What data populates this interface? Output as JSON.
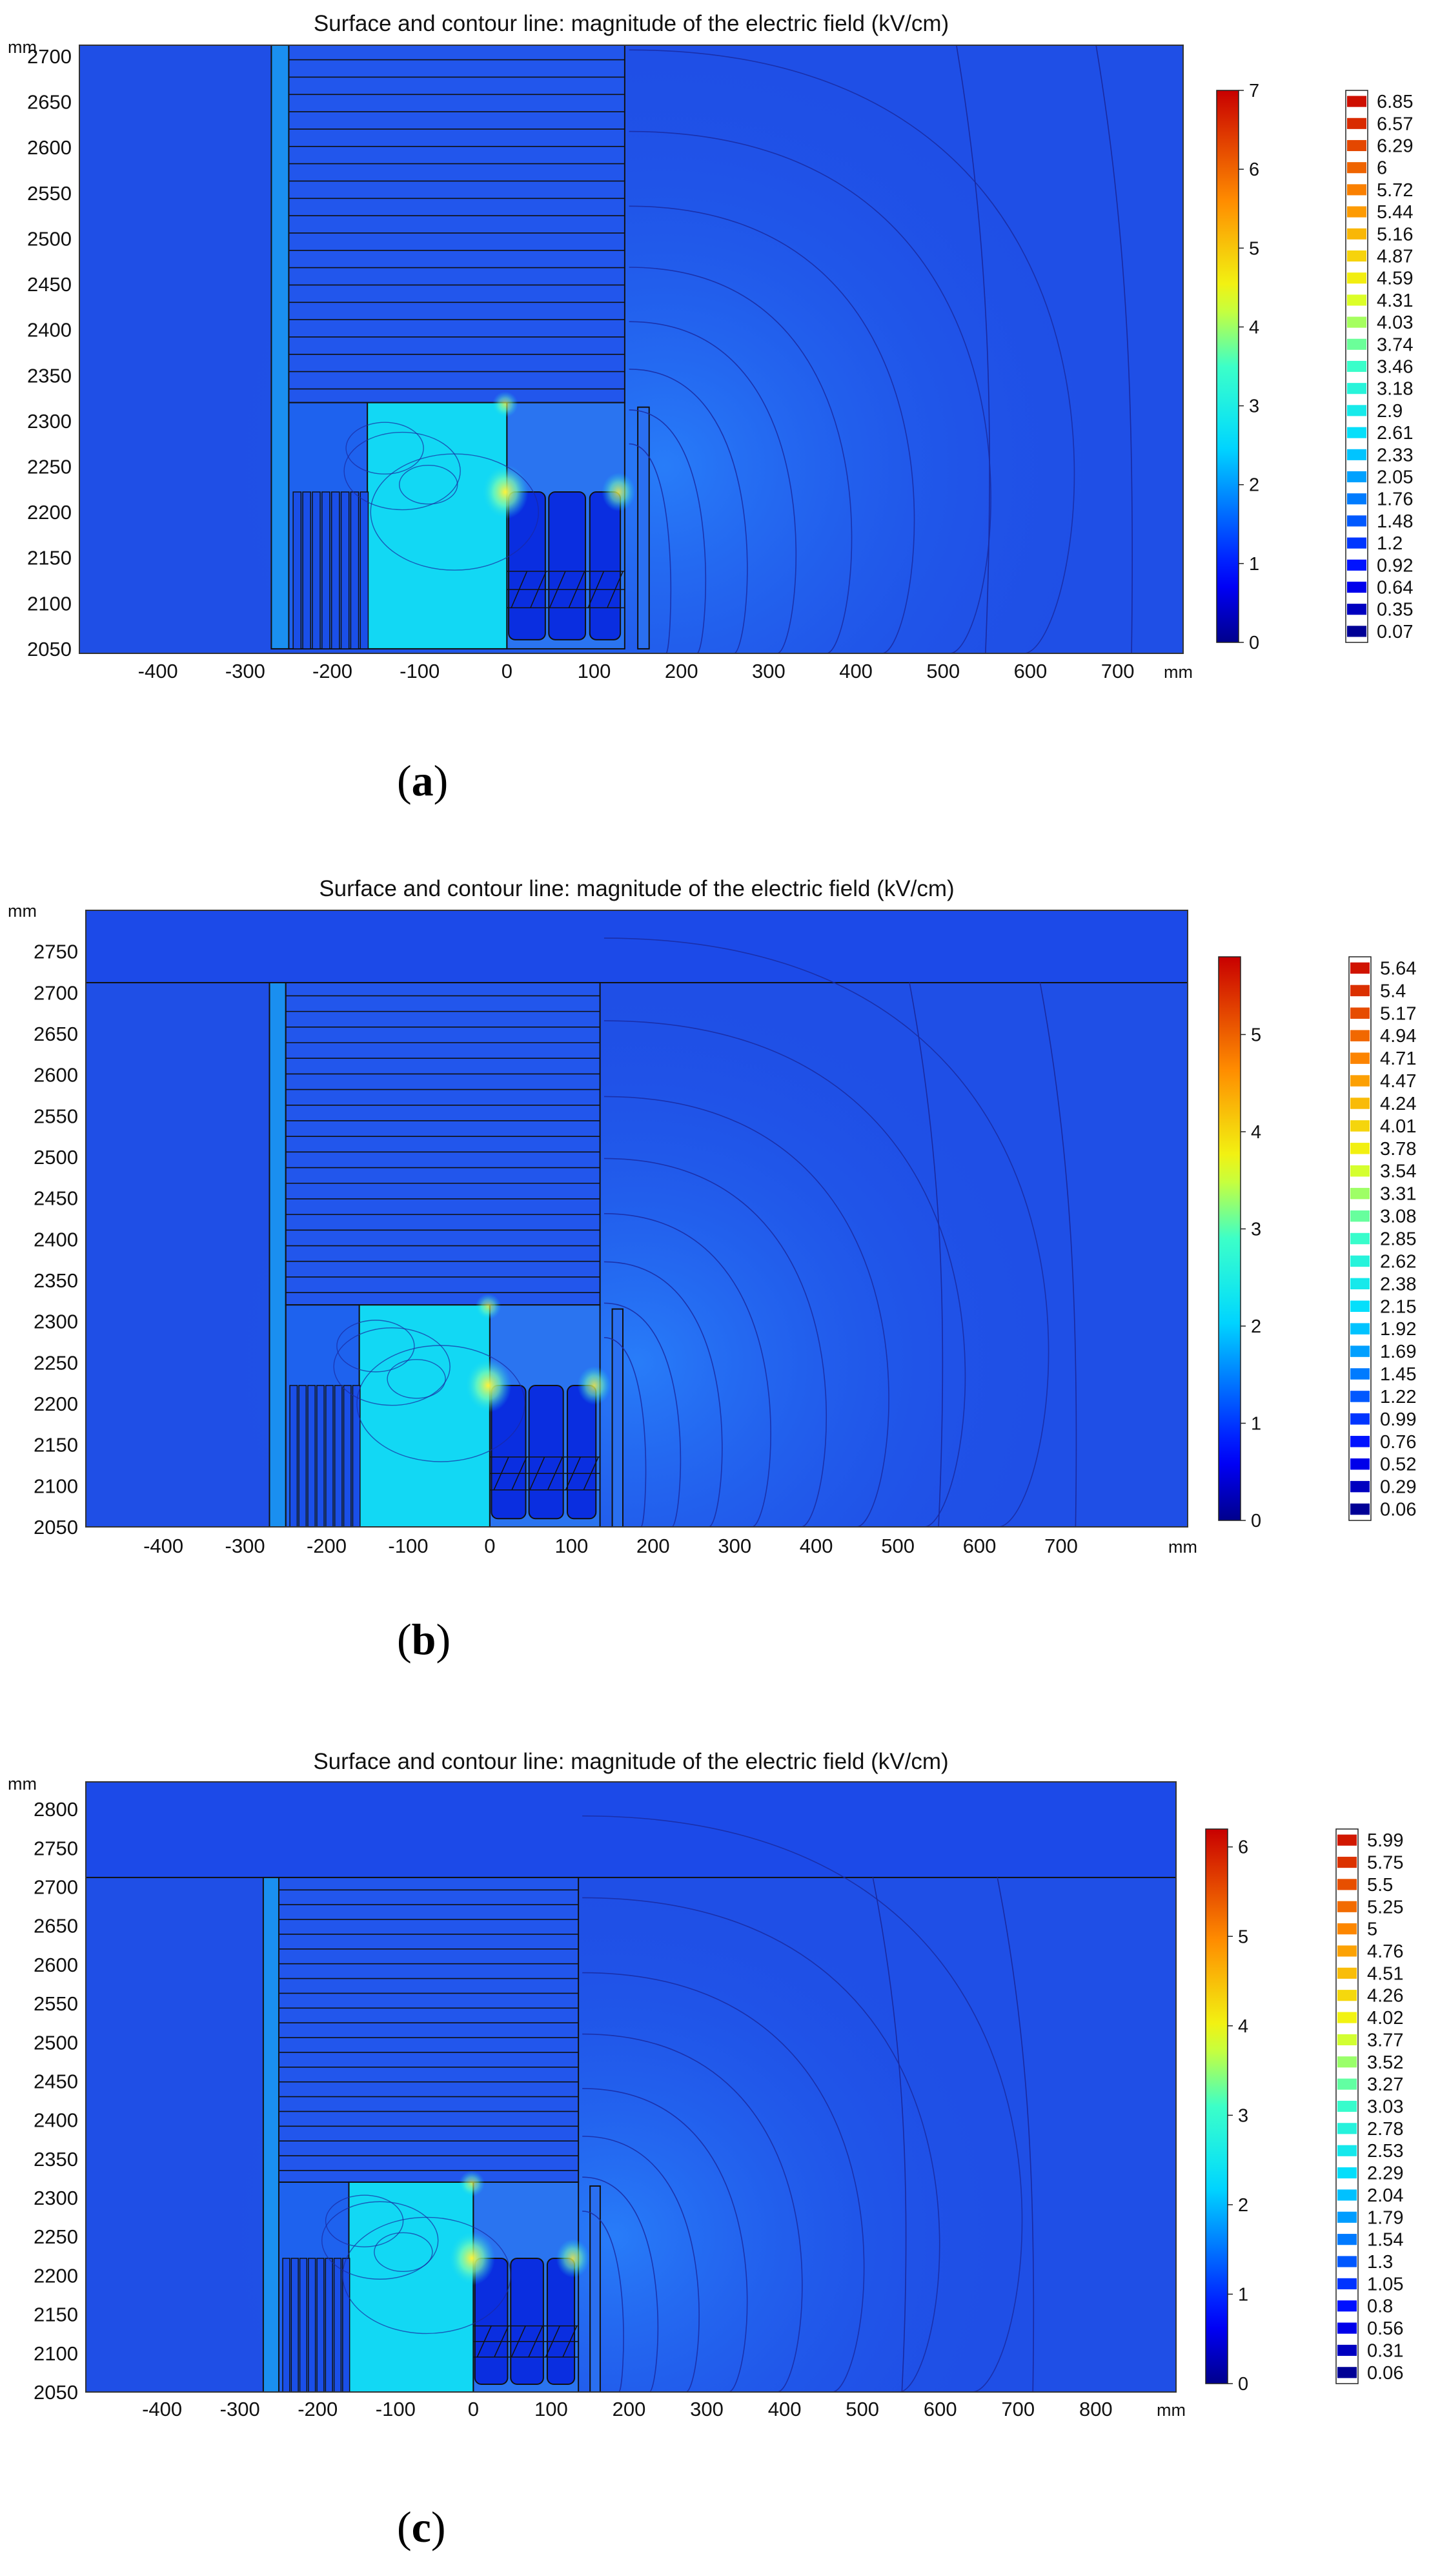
{
  "chart_data": [
    {
      "type": "heatmap",
      "panel_label": "a",
      "title": "Surface and contour line: magnitude of the electric field (kV/cm)",
      "x_unit": "mm",
      "y_unit": "mm",
      "x_ticks": [
        -400,
        -300,
        -200,
        -100,
        0,
        100,
        200,
        300,
        400,
        500,
        600,
        700
      ],
      "y_ticks": [
        2050,
        2100,
        2150,
        2200,
        2250,
        2300,
        2350,
        2400,
        2450,
        2500,
        2550,
        2600,
        2650,
        2700
      ],
      "xlim": [
        -490,
        775
      ],
      "ylim": [
        2045,
        2712
      ],
      "colorbar_ticks": [
        0,
        1,
        2,
        3,
        4,
        5,
        6,
        7
      ],
      "colorbar_max": 7,
      "contour_levels": [
        "6.85",
        "6.57",
        "6.29",
        "6",
        "5.72",
        "5.44",
        "5.16",
        "4.87",
        "4.59",
        "4.31",
        "4.03",
        "3.74",
        "3.46",
        "3.18",
        "2.9",
        "2.61",
        "2.33",
        "2.05",
        "1.76",
        "1.48",
        "1.2",
        "0.92",
        "0.64",
        "0.35",
        "0.07"
      ]
    },
    {
      "type": "heatmap",
      "panel_label": "b",
      "title": "Surface and contour line: magnitude of the electric field (kV/cm)",
      "x_unit": "mm",
      "y_unit": "mm",
      "x_ticks": [
        -400,
        -300,
        -200,
        -100,
        0,
        100,
        200,
        300,
        400,
        500,
        600,
        700
      ],
      "y_ticks": [
        2050,
        2100,
        2150,
        2200,
        2250,
        2300,
        2350,
        2400,
        2450,
        2500,
        2550,
        2600,
        2650,
        2700,
        2750
      ],
      "xlim": [
        -495,
        855
      ],
      "ylim": [
        2050,
        2800
      ],
      "colorbar_ticks": [
        0,
        1,
        2,
        3,
        4,
        5
      ],
      "colorbar_max": 5.8,
      "contour_levels": [
        "5.64",
        "5.4",
        "5.17",
        "4.94",
        "4.71",
        "4.47",
        "4.24",
        "4.01",
        "3.78",
        "3.54",
        "3.31",
        "3.08",
        "2.85",
        "2.62",
        "2.38",
        "2.15",
        "1.92",
        "1.69",
        "1.45",
        "1.22",
        "0.99",
        "0.76",
        "0.52",
        "0.29",
        "0.06"
      ]
    },
    {
      "type": "heatmap",
      "panel_label": "c",
      "title": "Surface and contour line: magnitude of the electric field (kV/cm)",
      "x_unit": "mm",
      "y_unit": "mm",
      "x_ticks": [
        -400,
        -300,
        -200,
        -100,
        0,
        100,
        200,
        300,
        400,
        500,
        600,
        700,
        800
      ],
      "y_ticks": [
        2050,
        2100,
        2150,
        2200,
        2250,
        2300,
        2350,
        2400,
        2450,
        2500,
        2550,
        2600,
        2650,
        2700,
        2750,
        2800
      ],
      "xlim": [
        -498,
        903
      ],
      "ylim": [
        2050,
        2835
      ],
      "colorbar_ticks": [
        0,
        1,
        2,
        3,
        4,
        5,
        6
      ],
      "colorbar_max": 6.2,
      "contour_levels": [
        "5.99",
        "5.75",
        "5.5",
        "5.25",
        "5",
        "4.76",
        "4.51",
        "4.26",
        "4.02",
        "3.77",
        "3.52",
        "3.27",
        "3.03",
        "2.78",
        "2.53",
        "2.29",
        "2.04",
        "1.79",
        "1.54",
        "1.3",
        "1.05",
        "0.8",
        "0.56",
        "0.31",
        "0.06"
      ]
    }
  ],
  "colors": {
    "background_field": "#1f4fe6",
    "high_field_region": "#12d8f4",
    "contour_line": "#1a2aa0",
    "structure_line": "#111111"
  }
}
